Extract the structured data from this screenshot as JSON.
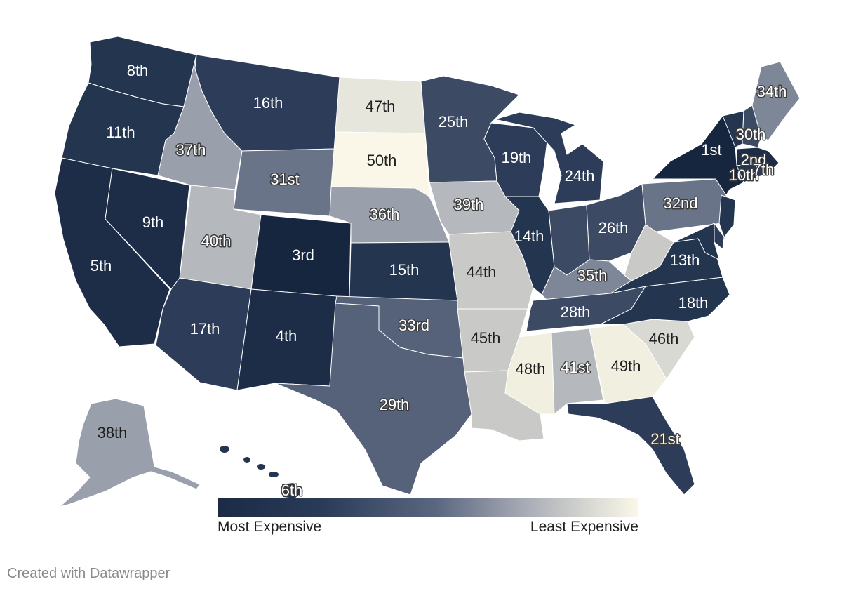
{
  "legend": {
    "low": "Most Expensive",
    "high": "Least Expensive"
  },
  "credit": "Created with Datawrapper",
  "colors": {
    "c1": "#17263f",
    "c2": "#1d2d48",
    "c3": "#24354f",
    "c4": "#2d3d59",
    "c5": "#3c4a64",
    "c6": "#55627a",
    "c7": "#6a7489",
    "c8": "#7e8798",
    "c9": "#9aa0ab",
    "c10": "#b5b8bd",
    "c11": "#c9cac7",
    "c12": "#d9d9d3",
    "c13": "#e7e6dd",
    "c14": "#f1efe0",
    "c15": "#faf7e9"
  },
  "states": {
    "WA": "8th",
    "OR": "11th",
    "CA": "5th",
    "NV": "9th",
    "ID": "37th",
    "MT": "16th",
    "WY": "31st",
    "UT": "40th",
    "AZ": "17th",
    "CO": "3rd",
    "NM": "4th",
    "ND": "47th",
    "SD": "50th",
    "NE": "36th",
    "KS": "15th",
    "OK": "33rd",
    "TX": "29th",
    "MN": "25th",
    "IA": "39th",
    "MO": "44th",
    "AR": "45th",
    "LA": "",
    "WI": "19th",
    "IL": "14th",
    "MI": "24th",
    "IN": "",
    "OH": "26th",
    "KY": "35th",
    "TN": "28th",
    "MS": "48th",
    "AL": "41st",
    "GA": "49th",
    "FL": "21st",
    "SC": "46th",
    "NC": "18th",
    "VA": "13th",
    "WV": "",
    "PA": "32nd",
    "NY": "1st",
    "VT": "",
    "NH": "30th",
    "ME": "34th",
    "MA": "2nd",
    "CT": "10th",
    "RI": "7th",
    "NJ": "",
    "DE": "",
    "MD": "",
    "AK": "38th",
    "HI": "6th"
  }
}
